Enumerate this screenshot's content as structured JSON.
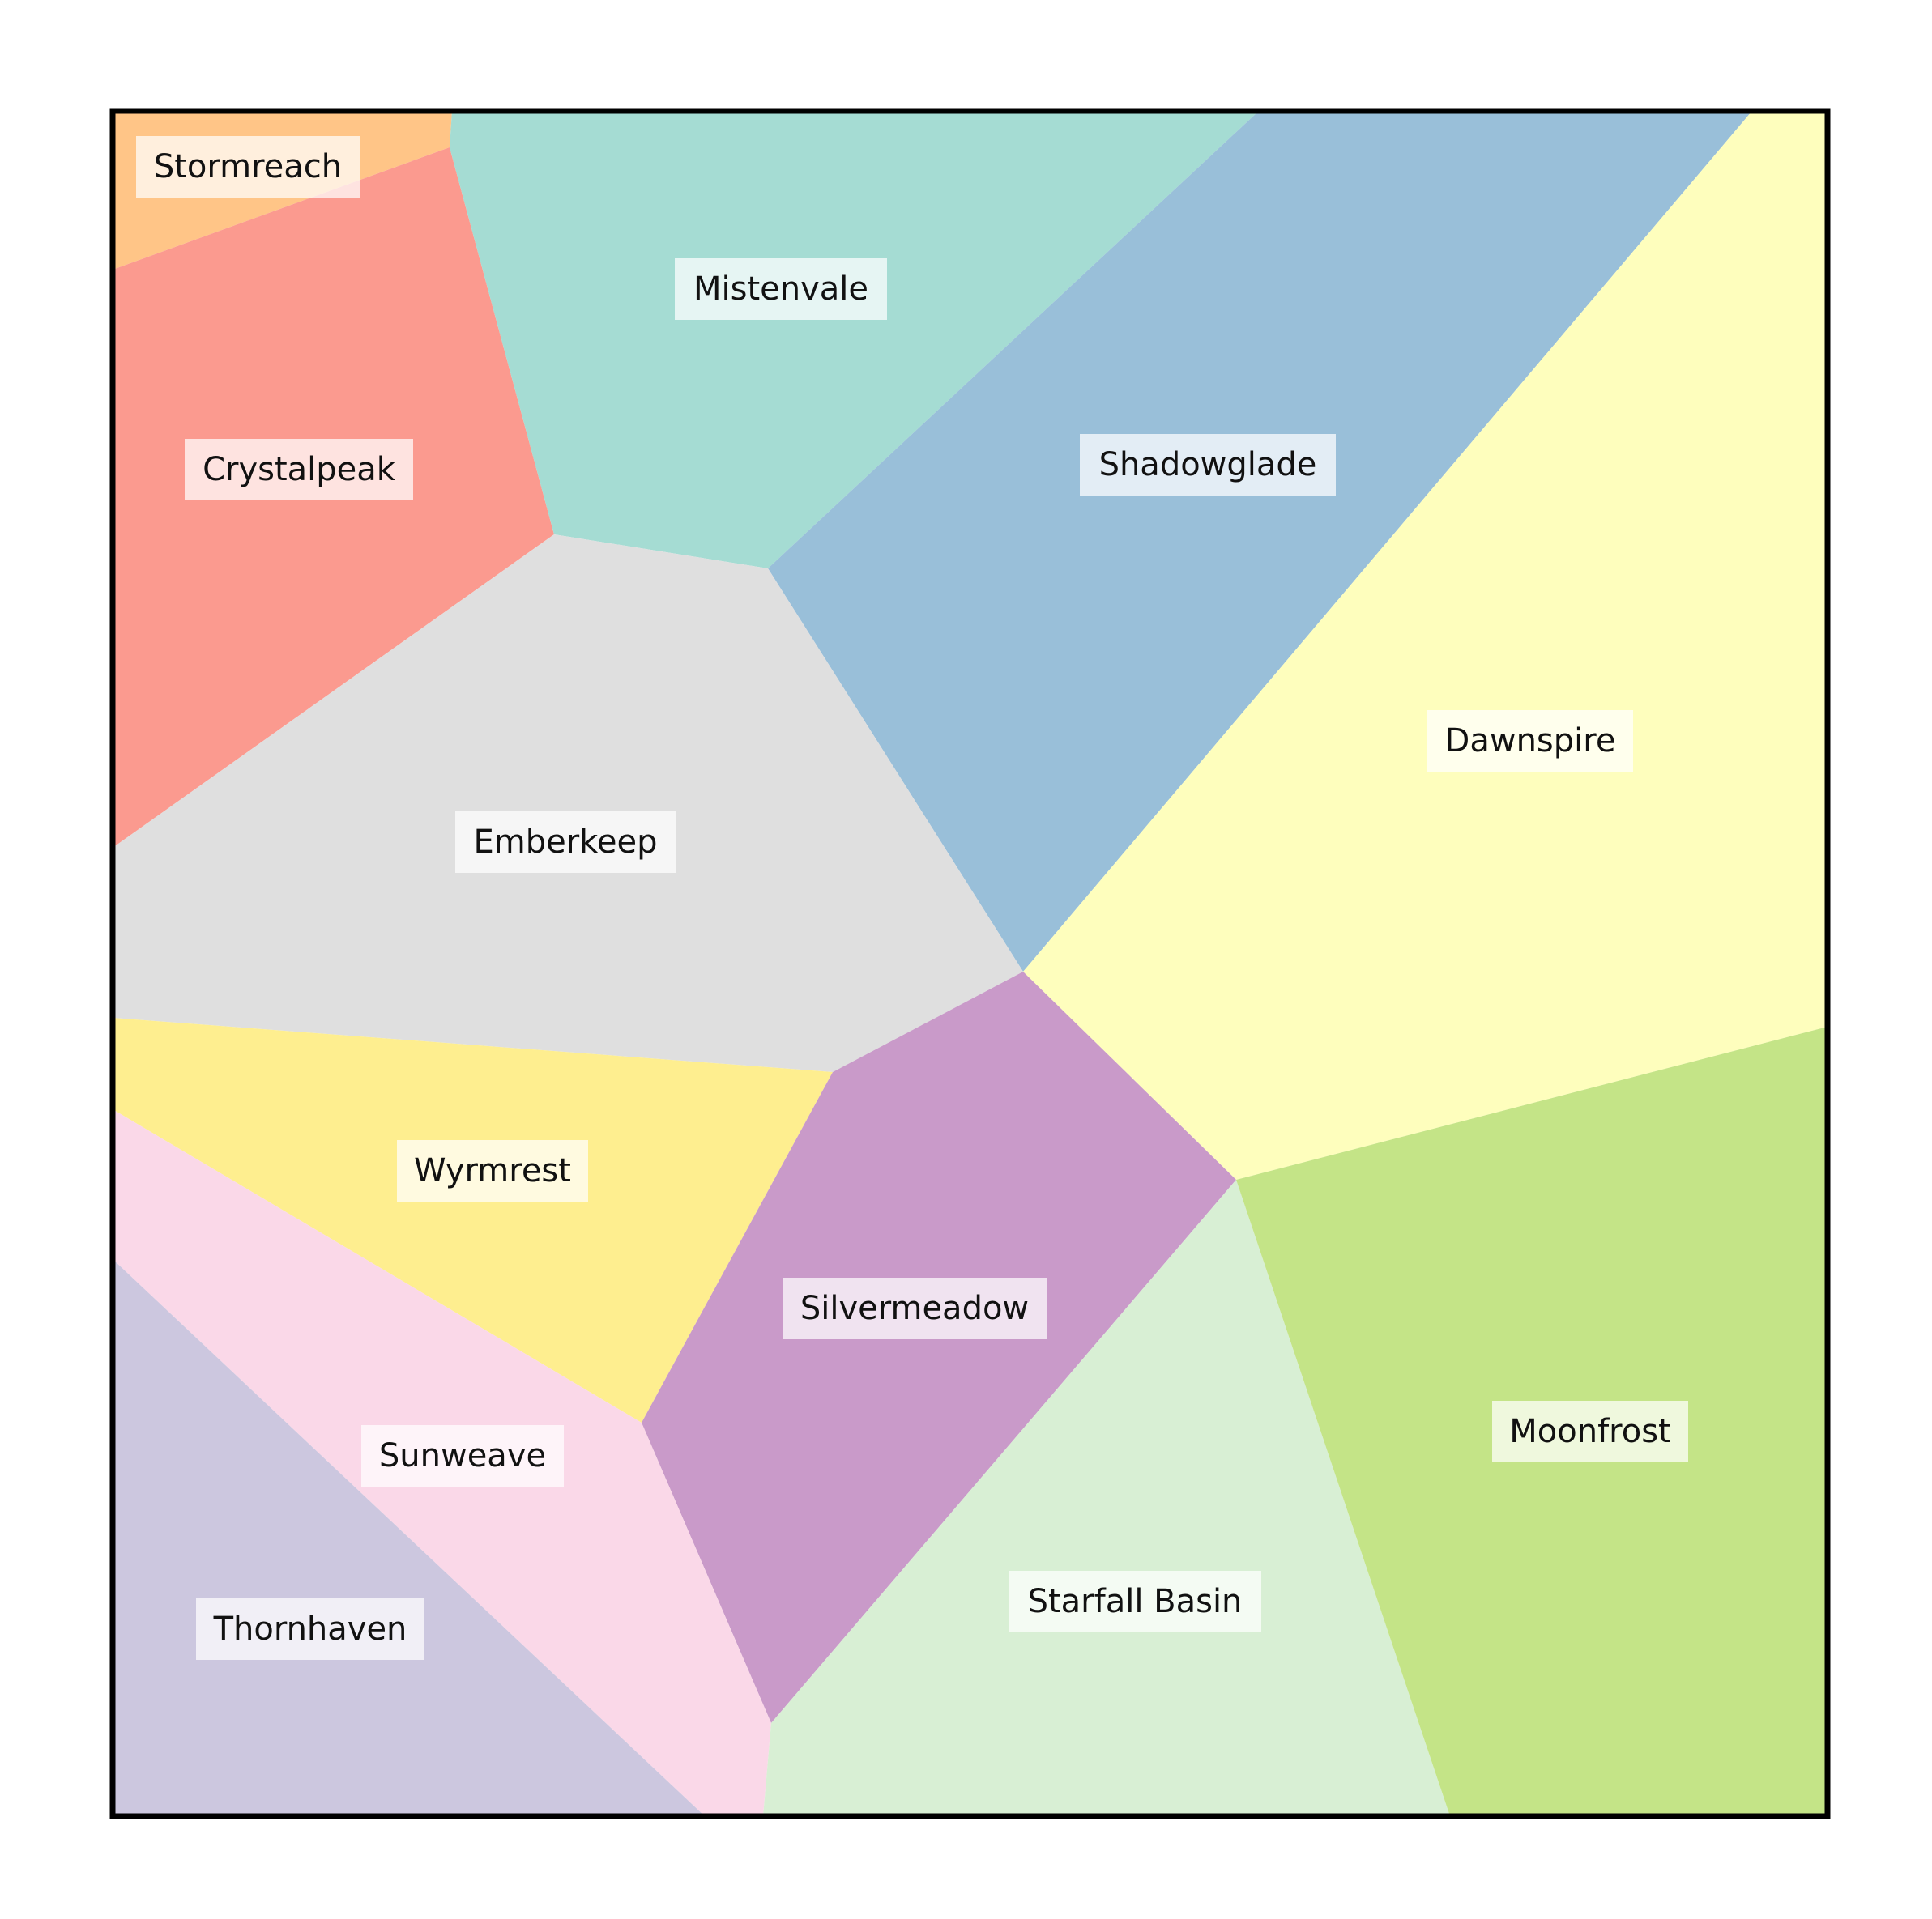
{
  "map": {
    "regions": [
      {
        "id": "stormreach",
        "name": "Stormreach",
        "color": "#FFC587"
      },
      {
        "id": "crystalpeak",
        "name": "Crystalpeak",
        "color": "#FB9A8F"
      },
      {
        "id": "mistenvale",
        "name": "Mistenvale",
        "color": "#A5DCD3"
      },
      {
        "id": "shadowglade",
        "name": "Shadowglade",
        "color": "#99BFD9"
      },
      {
        "id": "dawnspire",
        "name": "Dawnspire",
        "color": "#FEFEBD"
      },
      {
        "id": "emberkeep",
        "name": "Emberkeep",
        "color": "#DFDFDF"
      },
      {
        "id": "wyrmrest",
        "name": "Wyrmrest",
        "color": "#FEEE8F"
      },
      {
        "id": "silvermeadow",
        "name": "Silvermeadow",
        "color": "#C99AC9"
      },
      {
        "id": "sunweave",
        "name": "Sunweave",
        "color": "#FAD8E8"
      },
      {
        "id": "thornhaven",
        "name": "Thornhaven",
        "color": "#CCC7DF"
      },
      {
        "id": "starfall-basin",
        "name": "Starfall Basin",
        "color": "#D8EFD4"
      },
      {
        "id": "moonfrost",
        "name": "Moonfrost",
        "color": "#C4E487"
      }
    ],
    "frame_color": "#000000"
  }
}
